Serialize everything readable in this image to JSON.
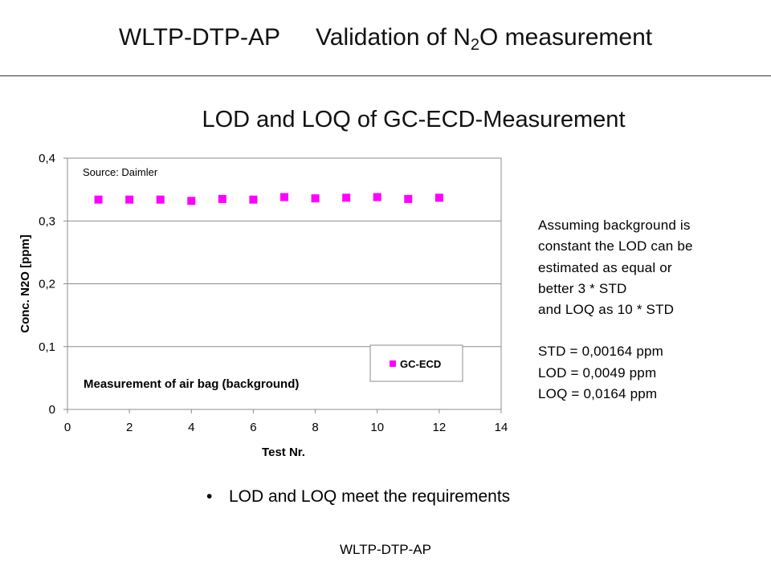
{
  "header": {
    "left": "WLTP-DTP-AP",
    "title_main": "Validation of N",
    "title_sub": "2",
    "title_end": "O measurement"
  },
  "subtitle": "LOD and LOQ of GC-ECD-Measurement",
  "chart_data": {
    "type": "scatter",
    "xlabel": "Test Nr.",
    "ylabel": "Conc. N2O [ppm]",
    "xlim": [
      0,
      14
    ],
    "ylim": [
      0,
      0.4
    ],
    "x_ticks": [
      "0",
      "2",
      "4",
      "6",
      "8",
      "10",
      "12",
      "14"
    ],
    "y_ticks": [
      "0",
      "0,1",
      "0,2",
      "0,3",
      "0,4"
    ],
    "grid": "horizontal",
    "series": [
      {
        "name": "GC-ECD",
        "color": "#ff00ff",
        "marker": "square",
        "x": [
          1,
          2,
          3,
          4,
          5,
          6,
          7,
          8,
          9,
          10,
          11,
          12
        ],
        "y": [
          0.334,
          0.334,
          0.334,
          0.332,
          0.335,
          0.334,
          0.338,
          0.336,
          0.337,
          0.338,
          0.335,
          0.337
        ]
      }
    ],
    "annotations": {
      "source": "Source: Daimler",
      "caption": "Measurement of air bag (background)"
    },
    "legend_position": "bottom-right"
  },
  "notes": {
    "lines": [
      "Assuming background is",
      "constant the LOD can be",
      "estimated as equal or",
      "better 3 * STD",
      "and LOQ as 10 * STD"
    ],
    "values": [
      "STD = 0,00164 ppm",
      "LOD = 0,0049 ppm",
      "LOQ = 0,0164 ppm"
    ]
  },
  "bullet": {
    "symbol": "•",
    "text": "LOD and LOQ meet the requirements"
  },
  "footer": "WLTP-DTP-AP"
}
